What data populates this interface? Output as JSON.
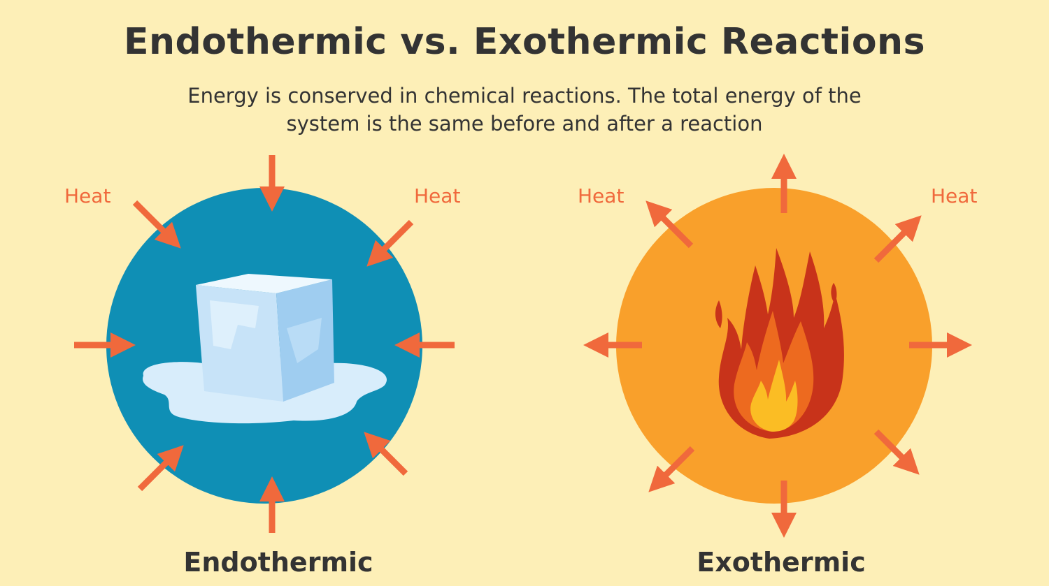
{
  "title": "Endothermic vs. Exothermic Reactions",
  "subtitle_line1": "Energy is conserved in chemical reactions. The total energy of the",
  "subtitle_line2": "system is the same before and after a reaction",
  "endothermic": {
    "label": "Endothermic",
    "heat_left": "Heat",
    "heat_right": "Heat",
    "circle_color": "#0f8fb5",
    "icon": "melting-ice-cube-icon"
  },
  "exothermic": {
    "label": "Exothermic",
    "heat_left": "Heat",
    "heat_right": "Heat",
    "circle_color": "#f9a02b",
    "icon": "flame-icon"
  },
  "arrow_color": "#f0693c"
}
